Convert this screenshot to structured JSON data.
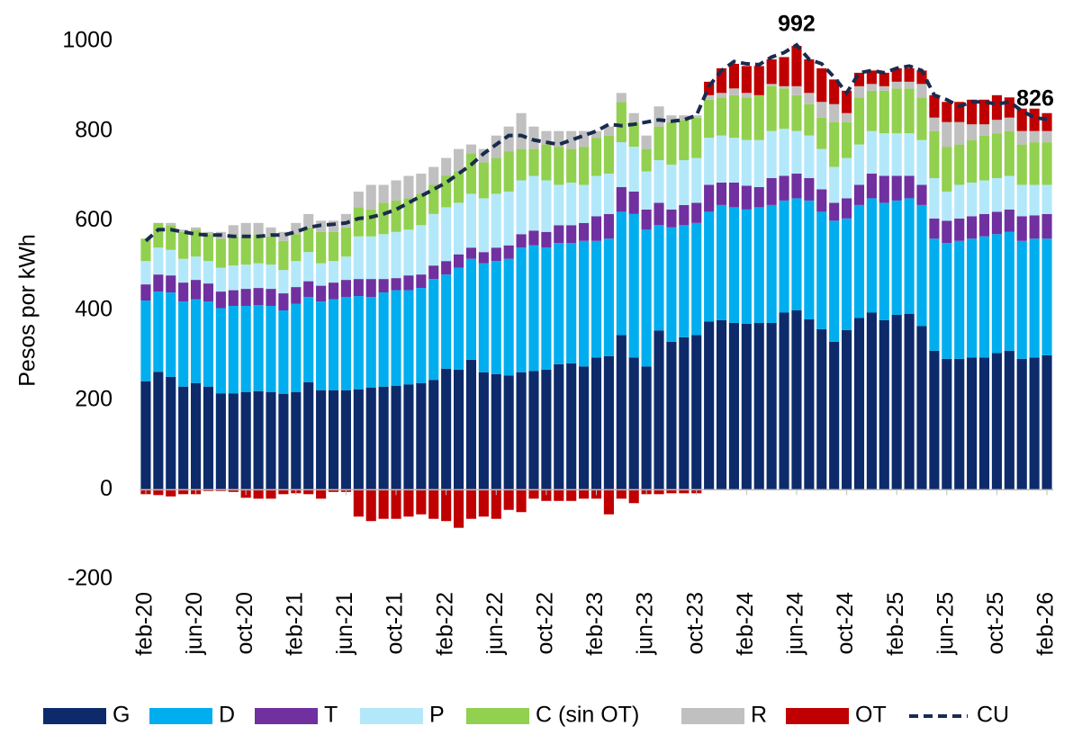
{
  "chart_data": {
    "type": "bar",
    "stacked": true,
    "y_label": "Pesos por kWh",
    "categories": [
      "feb-20",
      null,
      null,
      null,
      "jun-20",
      null,
      null,
      null,
      "oct-20",
      null,
      null,
      null,
      "feb-21",
      null,
      null,
      null,
      "jun-21",
      null,
      null,
      null,
      "oct-21",
      null,
      null,
      null,
      "feb-22",
      null,
      null,
      null,
      "jun-22",
      null,
      null,
      null,
      "oct-22",
      null,
      null,
      null,
      "feb-23",
      null,
      null,
      null,
      "jun-23",
      null,
      null,
      null,
      "oct-23",
      null,
      null,
      null,
      "feb-24",
      null,
      null,
      null,
      "jun-24",
      null,
      null,
      null,
      "oct-24",
      null,
      null,
      null,
      "feb-25",
      null,
      null,
      null,
      "jun-25",
      null,
      null,
      null,
      "oct-25",
      null,
      null,
      null,
      "feb-26"
    ],
    "ylim": [
      -200,
      1000
    ],
    "yticks": [
      -200,
      0,
      200,
      400,
      600,
      800,
      1000
    ],
    "series": [
      {
        "name": "G",
        "color": "#0d2b6b",
        "values": [
          242,
          263,
          252,
          230,
          238,
          230,
          215,
          215,
          218,
          220,
          218,
          214,
          218,
          240,
          222,
          222,
          222,
          224,
          228,
          230,
          232,
          235,
          238,
          245,
          270,
          268,
          290,
          262,
          258,
          255,
          262,
          265,
          268,
          280,
          282,
          275,
          295,
          298,
          345,
          295,
          275,
          355,
          330,
          340,
          345,
          375,
          378,
          372,
          370,
          372,
          372,
          395,
          400,
          380,
          358,
          330,
          356,
          383,
          395,
          378,
          390,
          392,
          365,
          310,
          292,
          292,
          295,
          295,
          305,
          310,
          292,
          295,
          300
        ]
      },
      {
        "name": "D",
        "color": "#00aeef",
        "values": [
          180,
          179,
          188,
          190,
          187,
          190,
          190,
          195,
          192,
          192,
          192,
          186,
          197,
          190,
          198,
          203,
          208,
          208,
          202,
          210,
          213,
          210,
          212,
          225,
          210,
          227,
          225,
          243,
          252,
          260,
          278,
          280,
          272,
          270,
          268,
          280,
          260,
          262,
          275,
          320,
          305,
          235,
          255,
          250,
          250,
          245,
          257,
          258,
          255,
          258,
          263,
          250,
          250,
          265,
          262,
          270,
          249,
          252,
          255,
          262,
          255,
          258,
          270,
          250,
          258,
          263,
          265,
          270,
          265,
          265,
          263,
          265,
          260
        ]
      },
      {
        "name": "T",
        "color": "#7030a0",
        "values": [
          36,
          38,
          38,
          42,
          43,
          40,
          37,
          35,
          38,
          38,
          38,
          38,
          37,
          35,
          35,
          37,
          38,
          38,
          40,
          30,
          27,
          33,
          30,
          30,
          30,
          30,
          25,
          25,
          30,
          30,
          30,
          33,
          35,
          40,
          40,
          40,
          55,
          55,
          55,
          50,
          45,
          50,
          40,
          45,
          45,
          60,
          50,
          55,
          53,
          45,
          60,
          55,
          55,
          50,
          50,
          40,
          45,
          45,
          55,
          60,
          55,
          50,
          45,
          45,
          50,
          50,
          50,
          50,
          50,
          50,
          55,
          52,
          55
        ]
      },
      {
        "name": "P",
        "color": "#b3e8fb",
        "values": [
          52,
          60,
          57,
          53,
          52,
          50,
          53,
          55,
          54,
          55,
          54,
          52,
          58,
          65,
          50,
          48,
          52,
          95,
          95,
          100,
          103,
          102,
          110,
          115,
          120,
          115,
          120,
          120,
          120,
          120,
          120,
          122,
          115,
          90,
          95,
          85,
          90,
          90,
          100,
          100,
          85,
          95,
          100,
          100,
          100,
          105,
          105,
          100,
          102,
          105,
          105,
          105,
          95,
          95,
          90,
          80,
          90,
          90,
          95,
          95,
          95,
          95,
          100,
          90,
          65,
          75,
          75,
          75,
          75,
          75,
          70,
          68,
          65
        ]
      },
      {
        "name": "C (sin OT)",
        "color": "#92d050",
        "values": [
          50,
          55,
          55,
          60,
          60,
          60,
          65,
          65,
          63,
          65,
          63,
          65,
          60,
          55,
          70,
          65,
          65,
          65,
          60,
          70,
          70,
          70,
          70,
          65,
          70,
          70,
          90,
          80,
          80,
          90,
          70,
          60,
          80,
          85,
          75,
          85,
          85,
          85,
          90,
          55,
          50,
          75,
          95,
          90,
          90,
          85,
          85,
          95,
          95,
          100,
          100,
          90,
          80,
          70,
          70,
          100,
          80,
          105,
          90,
          95,
          100,
          100,
          95,
          105,
          100,
          90,
          95,
          100,
          100,
          100,
          90,
          95,
          95
        ]
      },
      {
        "name": "R",
        "color": "#c0c0c0",
        "values": [
          0,
          0,
          5,
          5,
          5,
          5,
          15,
          25,
          30,
          25,
          20,
          20,
          25,
          30,
          25,
          25,
          30,
          35,
          55,
          40,
          45,
          50,
          45,
          40,
          40,
          50,
          20,
          30,
          50,
          55,
          80,
          50,
          30,
          35,
          40,
          35,
          15,
          20,
          20,
          20,
          30,
          45,
          15,
          10,
          5,
          10,
          10,
          15,
          10,
          0,
          5,
          5,
          20,
          25,
          35,
          40,
          20,
          25,
          15,
          10,
          15,
          15,
          30,
          30,
          55,
          50,
          35,
          25,
          30,
          30,
          30,
          25,
          25
        ]
      },
      {
        "name": "OT",
        "color": "#c00000",
        "values": [
          -10,
          -12,
          -15,
          -10,
          -10,
          -3,
          -3,
          -5,
          -18,
          -20,
          -20,
          -10,
          -8,
          -10,
          -20,
          -5,
          -5,
          -60,
          -70,
          -65,
          -65,
          -60,
          -55,
          -65,
          -70,
          -85,
          -65,
          -60,
          -65,
          -45,
          -50,
          -20,
          -25,
          -25,
          -25,
          -20,
          -20,
          -55,
          -20,
          -30,
          -10,
          -10,
          -8,
          -8,
          -8,
          30,
          55,
          55,
          60,
          65,
          55,
          65,
          90,
          75,
          75,
          55,
          50,
          30,
          30,
          30,
          30,
          30,
          30,
          50,
          45,
          45,
          55,
          55,
          55,
          45,
          50,
          50,
          40
        ]
      },
      {
        "name": "CU",
        "type": "line",
        "line_style": "dashed",
        "color": "#1a2b4c",
        "values": [
          555,
          580,
          580,
          575,
          570,
          568,
          568,
          565,
          565,
          565,
          568,
          568,
          575,
          585,
          590,
          592,
          595,
          605,
          608,
          615,
          625,
          640,
          655,
          670,
          685,
          705,
          725,
          750,
          770,
          790,
          790,
          780,
          775,
          770,
          780,
          790,
          800,
          815,
          812,
          815,
          820,
          825,
          822,
          825,
          835,
          900,
          935,
          955,
          950,
          948,
          965,
          975,
          992,
          960,
          950,
          920,
          885,
          930,
          935,
          930,
          940,
          945,
          935,
          880,
          870,
          855,
          865,
          865,
          860,
          865,
          845,
          830,
          826
        ],
        "value_labels": [
          null,
          null,
          null,
          null,
          null,
          null,
          null,
          null,
          null,
          null,
          null,
          null,
          null,
          null,
          null,
          null,
          null,
          null,
          null,
          null,
          null,
          null,
          null,
          null,
          null,
          null,
          null,
          null,
          null,
          null,
          null,
          null,
          null,
          null,
          null,
          null,
          null,
          null,
          null,
          null,
          null,
          null,
          null,
          null,
          null,
          null,
          null,
          null,
          null,
          null,
          null,
          null,
          "992",
          null,
          null,
          null,
          null,
          null,
          null,
          null,
          null,
          null,
          null,
          null,
          null,
          null,
          null,
          null,
          null,
          null,
          null,
          null,
          "826"
        ]
      }
    ]
  }
}
